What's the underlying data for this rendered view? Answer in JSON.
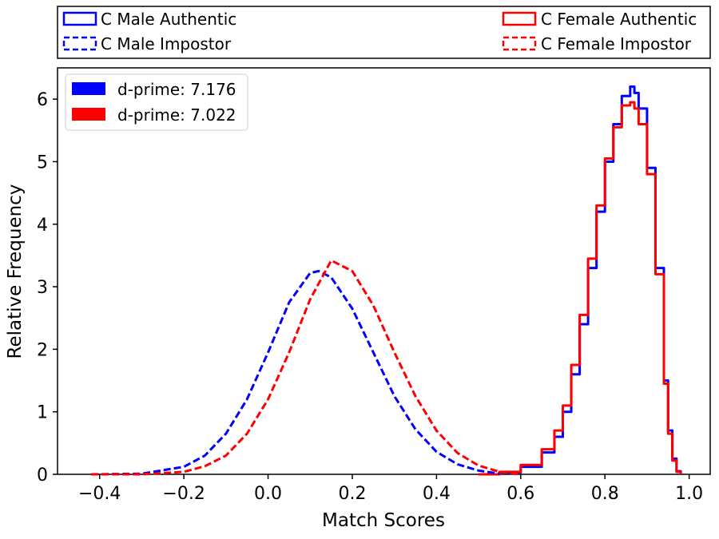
{
  "chart_data": {
    "type": "line",
    "title": "",
    "xlabel": "Match Scores",
    "ylabel": "Relative Frequency",
    "xlim": [
      -0.5,
      1.05
    ],
    "ylim": [
      0,
      6.5
    ],
    "xticks": [
      -0.4,
      -0.2,
      0.0,
      0.2,
      0.4,
      0.6,
      0.8,
      1.0
    ],
    "xtick_labels": [
      "−0.4",
      "−0.2",
      "0.0",
      "0.2",
      "0.4",
      "0.6",
      "0.8",
      "1.0"
    ],
    "yticks": [
      0,
      1,
      2,
      3,
      4,
      5,
      6
    ],
    "ytick_labels": [
      "0",
      "1",
      "2",
      "3",
      "4",
      "5",
      "6"
    ],
    "grid": false,
    "top_legend": [
      {
        "label": "C Male Authentic",
        "color": "#0000ff",
        "style": "solid"
      },
      {
        "label": "C Female Authentic",
        "color": "#ff0000",
        "style": "solid"
      },
      {
        "label": "C Male Impostor",
        "color": "#0000ff",
        "style": "dashed"
      },
      {
        "label": "C Female Impostor",
        "color": "#ff0000",
        "style": "dashed"
      }
    ],
    "inner_legend": [
      {
        "label": "d-prime: 7.176",
        "color": "#0000ff"
      },
      {
        "label": "d-prime: 7.022",
        "color": "#ff0000"
      }
    ],
    "series": [
      {
        "name": "C Male Authentic",
        "color": "#0000ff",
        "style": "step",
        "x": [
          0.5,
          0.55,
          0.6,
          0.65,
          0.68,
          0.7,
          0.72,
          0.74,
          0.76,
          0.78,
          0.8,
          0.82,
          0.84,
          0.86,
          0.87,
          0.88,
          0.9,
          0.92,
          0.94,
          0.95,
          0.96,
          0.97,
          0.98
        ],
        "y": [
          0.0,
          0.03,
          0.12,
          0.35,
          0.6,
          1.0,
          1.6,
          2.4,
          3.3,
          4.2,
          5.0,
          5.6,
          6.05,
          6.2,
          6.1,
          5.85,
          4.9,
          3.3,
          1.5,
          0.7,
          0.25,
          0.05,
          0.0
        ]
      },
      {
        "name": "C Female Authentic",
        "color": "#ff0000",
        "style": "step",
        "x": [
          0.5,
          0.55,
          0.6,
          0.65,
          0.68,
          0.7,
          0.72,
          0.74,
          0.76,
          0.78,
          0.8,
          0.82,
          0.84,
          0.86,
          0.87,
          0.88,
          0.9,
          0.92,
          0.94,
          0.95,
          0.96,
          0.97,
          0.98
        ],
        "y": [
          0.0,
          0.04,
          0.15,
          0.4,
          0.7,
          1.1,
          1.75,
          2.55,
          3.45,
          4.3,
          5.05,
          5.55,
          5.9,
          5.95,
          5.85,
          5.6,
          4.8,
          3.2,
          1.45,
          0.65,
          0.22,
          0.04,
          0.0
        ]
      },
      {
        "name": "C Male Impostor",
        "color": "#0000ff",
        "style": "dashed",
        "x": [
          -0.42,
          -0.3,
          -0.2,
          -0.15,
          -0.1,
          -0.05,
          0.0,
          0.05,
          0.1,
          0.12,
          0.15,
          0.2,
          0.25,
          0.3,
          0.35,
          0.4,
          0.45,
          0.5,
          0.55
        ],
        "y": [
          0.0,
          0.01,
          0.12,
          0.3,
          0.65,
          1.2,
          1.95,
          2.75,
          3.22,
          3.25,
          3.15,
          2.65,
          1.95,
          1.25,
          0.72,
          0.36,
          0.16,
          0.06,
          0.01
        ]
      },
      {
        "name": "C Female Impostor",
        "color": "#ff0000",
        "style": "dashed",
        "x": [
          -0.42,
          -0.3,
          -0.2,
          -0.15,
          -0.1,
          -0.05,
          0.0,
          0.05,
          0.1,
          0.15,
          0.2,
          0.25,
          0.3,
          0.35,
          0.4,
          0.45,
          0.5,
          0.55,
          0.6
        ],
        "y": [
          0.0,
          0.0,
          0.04,
          0.13,
          0.3,
          0.65,
          1.2,
          1.95,
          2.8,
          3.42,
          3.25,
          2.7,
          1.95,
          1.25,
          0.7,
          0.34,
          0.14,
          0.04,
          0.0
        ]
      }
    ]
  }
}
